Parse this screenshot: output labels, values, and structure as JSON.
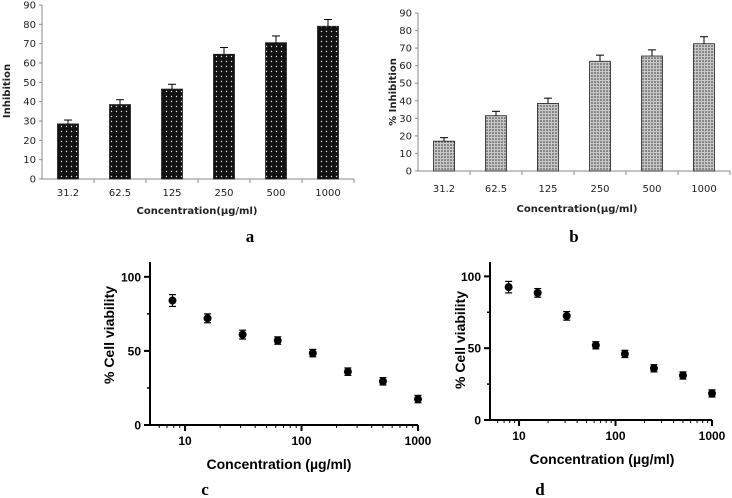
{
  "chart_data": [
    {
      "id": "a",
      "type": "bar",
      "panel_label": "a",
      "categories": [
        "31.2",
        "62.5",
        "125",
        "250",
        "500",
        "1000"
      ],
      "values": [
        28.5,
        38.5,
        46.5,
        64.5,
        70.5,
        79
      ],
      "errors": [
        2,
        2.5,
        2.5,
        3.5,
        3.5,
        3.5
      ],
      "xlabel": "Concentration(µg/ml)",
      "ylabel": "Inhibition",
      "ylim": [
        0,
        90
      ],
      "yticks": [
        "0",
        "10",
        "20",
        "30",
        "40",
        "50",
        "60",
        "70",
        "80",
        "90"
      ],
      "grid": false,
      "bar_color": "#111111"
    },
    {
      "id": "b",
      "type": "bar",
      "panel_label": "b",
      "categories": [
        "31.2",
        "62.5",
        "125",
        "250",
        "500",
        "1000"
      ],
      "values": [
        17,
        31.5,
        38.5,
        62.5,
        65.5,
        72.5
      ],
      "errors": [
        2,
        2.5,
        3,
        3.5,
        3.5,
        4
      ],
      "xlabel": "Concentration(µg/ml)",
      "ylabel": "% Inhibition",
      "ylim": [
        0,
        90
      ],
      "yticks": [
        "0",
        "10",
        "20",
        "30",
        "40",
        "50",
        "60",
        "70",
        "80",
        "90"
      ],
      "grid": false,
      "bar_color": "#9a9a9a"
    },
    {
      "id": "c",
      "type": "scatter",
      "panel_label": "c",
      "x": [
        7.8,
        15.6,
        31.2,
        62.5,
        125,
        250,
        500,
        1000
      ],
      "y": [
        84,
        72,
        61,
        57,
        48.5,
        36,
        29.5,
        17.5
      ],
      "errors": [
        4,
        3,
        3,
        2.5,
        2.5,
        2.5,
        2.5,
        2.5
      ],
      "xscale": "log",
      "xlim": [
        5,
        1000
      ],
      "ylim": [
        0,
        110
      ],
      "xticks": [
        "10",
        "100",
        "1000"
      ],
      "yticks": [
        "0",
        "50",
        "100"
      ],
      "xlabel": "Concentration (µg/ml)",
      "ylabel": "% Cell viability",
      "grid": false
    },
    {
      "id": "d",
      "type": "scatter",
      "panel_label": "d",
      "x": [
        7.8,
        15.6,
        31.2,
        62.5,
        125,
        250,
        500,
        1000
      ],
      "y": [
        92.5,
        88.5,
        72.5,
        52,
        46,
        36,
        31,
        18.5
      ],
      "errors": [
        4,
        3,
        3,
        2.5,
        2.5,
        2.5,
        2.5,
        2.5
      ],
      "xscale": "log",
      "xlim": [
        5,
        1000
      ],
      "ylim": [
        0,
        110
      ],
      "xticks": [
        "10",
        "100",
        "1000"
      ],
      "yticks": [
        "0",
        "50",
        "100"
      ],
      "xlabel": "Concentration (µg/ml)",
      "ylabel": "% Cell viability",
      "grid": false
    }
  ]
}
